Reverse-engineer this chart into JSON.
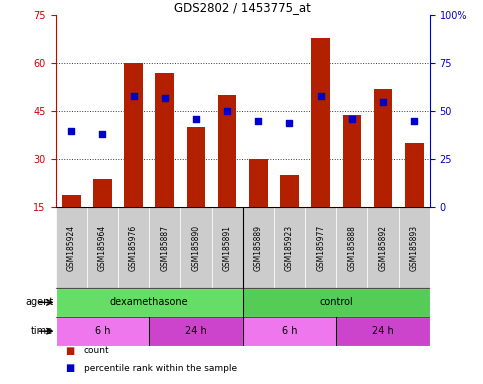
{
  "title": "GDS2802 / 1453775_at",
  "samples": [
    "GSM185924",
    "GSM185964",
    "GSM185976",
    "GSM185887",
    "GSM185890",
    "GSM185891",
    "GSM185889",
    "GSM185923",
    "GSM185977",
    "GSM185888",
    "GSM185892",
    "GSM185893"
  ],
  "counts": [
    19,
    24,
    60,
    57,
    40,
    50,
    30,
    25,
    68,
    44,
    52,
    35
  ],
  "percentiles": [
    40,
    38,
    58,
    57,
    46,
    50,
    45,
    44,
    58,
    46,
    55,
    45
  ],
  "ylim_left": [
    15,
    75
  ],
  "ylim_right": [
    0,
    100
  ],
  "yticks_left": [
    15,
    30,
    45,
    60,
    75
  ],
  "yticks_right": [
    0,
    25,
    50,
    75,
    100
  ],
  "bar_color": "#B22000",
  "dot_color": "#0000CC",
  "agent_groups": [
    {
      "label": "dexamethasone",
      "start": 0,
      "end": 5,
      "color": "#66DD66"
    },
    {
      "label": "control",
      "start": 6,
      "end": 11,
      "color": "#55CC55"
    }
  ],
  "time_groups": [
    {
      "label": "6 h",
      "start": 0,
      "end": 2,
      "color": "#EE77EE"
    },
    {
      "label": "24 h",
      "start": 3,
      "end": 5,
      "color": "#CC44CC"
    },
    {
      "label": "6 h",
      "start": 6,
      "end": 8,
      "color": "#EE77EE"
    },
    {
      "label": "24 h",
      "start": 9,
      "end": 11,
      "color": "#CC44CC"
    }
  ],
  "legend_items": [
    {
      "label": "count",
      "color": "#B22000"
    },
    {
      "label": "percentile rank within the sample",
      "color": "#0000CC"
    }
  ],
  "left_axis_color": "#CC0000",
  "right_axis_color": "#0000CC",
  "background_color": "#FFFFFF",
  "plot_bg_color": "#FFFFFF",
  "label_bg_color": "#CCCCCC",
  "gridline_color": "#333333",
  "separator_color": "#000000"
}
